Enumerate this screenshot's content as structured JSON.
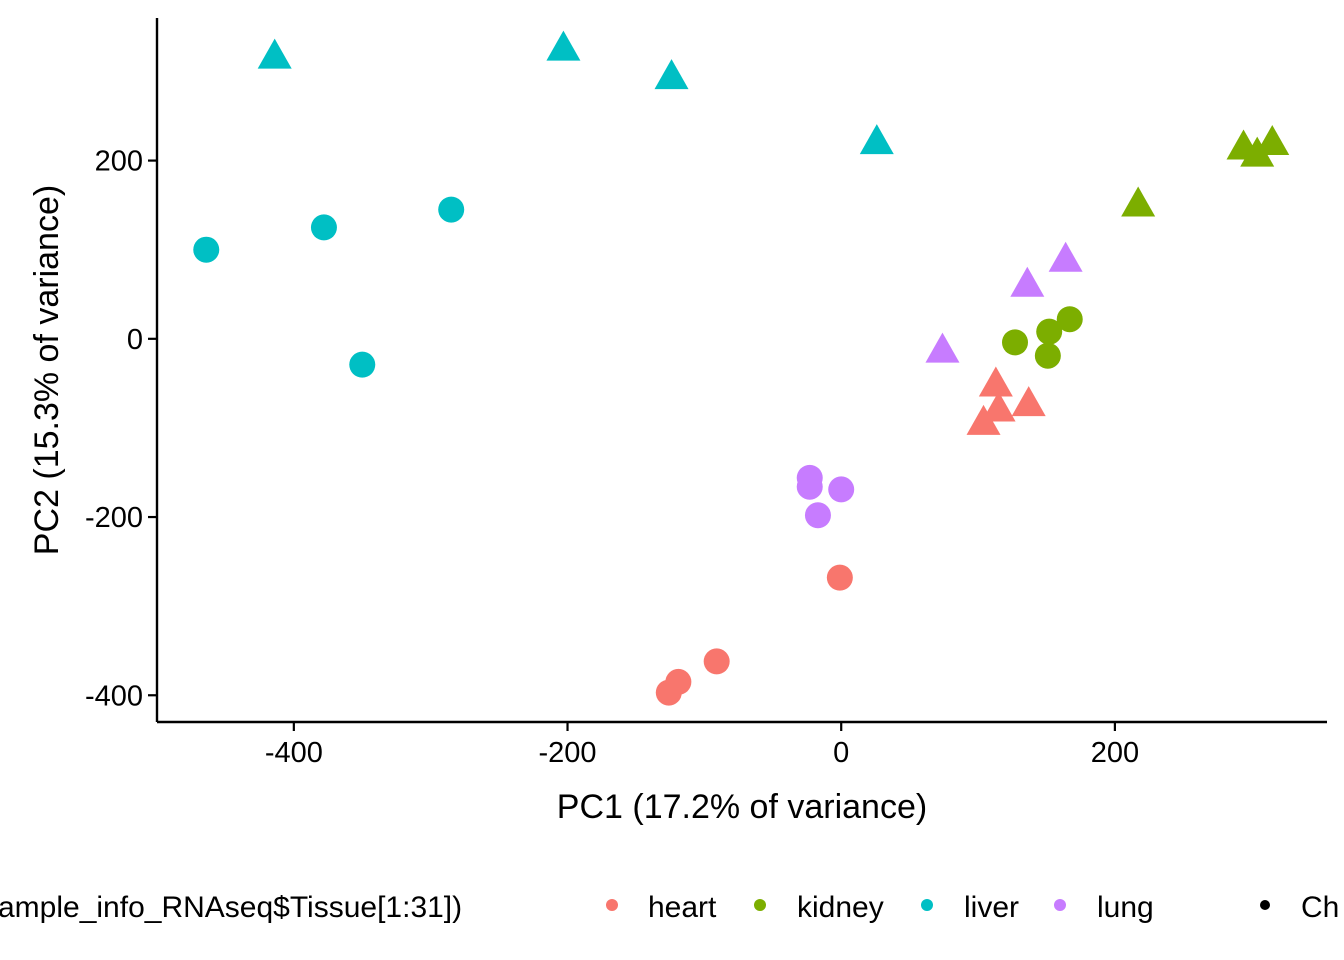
{
  "chart_data": {
    "type": "scatter",
    "title": "",
    "xlabel": "PC1 (17.2% of variance)",
    "ylabel": "PC2 (15.3% of variance)",
    "xlim": [
      -500,
      355
    ],
    "ylim": [
      -430,
      360
    ],
    "xticks": [
      -400,
      -200,
      0,
      200
    ],
    "yticks": [
      -400,
      -200,
      0,
      200
    ],
    "xtick_labels": [
      "-400",
      "-200",
      "0",
      "200"
    ],
    "ytick_labels": [
      "-400",
      "-200",
      "0",
      "200"
    ],
    "grid": false,
    "legend_position": "bottom",
    "legend": {
      "title": "ample_info_RNAseq$Tissue[1:31])",
      "items": [
        {
          "label": "heart",
          "color": "#F8766D"
        },
        {
          "label": "kidney",
          "color": "#7CAE00"
        },
        {
          "label": "liver",
          "color": "#00BFC4"
        },
        {
          "label": "lung",
          "color": "#C77CFF"
        }
      ],
      "second_title": "Ch",
      "second_color": "#000000"
    },
    "shapes": [
      "circle",
      "triangle"
    ],
    "series": [
      {
        "name": "heart",
        "color": "#F8766D",
        "points": [
          {
            "x": -126,
            "y": -397,
            "shape": "circle"
          },
          {
            "x": -119,
            "y": -385,
            "shape": "circle"
          },
          {
            "x": -91,
            "y": -362,
            "shape": "circle"
          },
          {
            "x": -1,
            "y": -268,
            "shape": "circle"
          },
          {
            "x": 104,
            "y": -95,
            "shape": "triangle"
          },
          {
            "x": 115,
            "y": -80,
            "shape": "triangle"
          },
          {
            "x": 137,
            "y": -74,
            "shape": "triangle"
          },
          {
            "x": 113,
            "y": -52,
            "shape": "triangle"
          }
        ]
      },
      {
        "name": "kidney",
        "color": "#7CAE00",
        "points": [
          {
            "x": 127,
            "y": -4,
            "shape": "circle"
          },
          {
            "x": 151,
            "y": -19,
            "shape": "circle"
          },
          {
            "x": 152,
            "y": 8,
            "shape": "circle"
          },
          {
            "x": 167,
            "y": 22,
            "shape": "circle"
          },
          {
            "x": 217,
            "y": 150,
            "shape": "triangle"
          },
          {
            "x": 294,
            "y": 214,
            "shape": "triangle"
          },
          {
            "x": 304,
            "y": 206,
            "shape": "triangle"
          },
          {
            "x": 315,
            "y": 219,
            "shape": "triangle"
          }
        ]
      },
      {
        "name": "liver",
        "color": "#00BFC4",
        "points": [
          {
            "x": -464,
            "y": 100,
            "shape": "circle"
          },
          {
            "x": -378,
            "y": 125,
            "shape": "circle"
          },
          {
            "x": -350,
            "y": -29,
            "shape": "circle"
          },
          {
            "x": -285,
            "y": 145,
            "shape": "circle"
          },
          {
            "x": -414,
            "y": 316,
            "shape": "triangle"
          },
          {
            "x": -203,
            "y": 325,
            "shape": "triangle"
          },
          {
            "x": -124,
            "y": 293,
            "shape": "triangle"
          },
          {
            "x": 26,
            "y": 220,
            "shape": "triangle"
          }
        ]
      },
      {
        "name": "lung",
        "color": "#C77CFF",
        "points": [
          {
            "x": -23,
            "y": -156,
            "shape": "circle"
          },
          {
            "x": -23,
            "y": -166,
            "shape": "circle"
          },
          {
            "x": -17,
            "y": -198,
            "shape": "circle"
          },
          {
            "x": 0,
            "y": -169,
            "shape": "circle"
          },
          {
            "x": 74,
            "y": -14,
            "shape": "triangle"
          },
          {
            "x": 136,
            "y": 60,
            "shape": "triangle"
          },
          {
            "x": 164,
            "y": 88,
            "shape": "triangle"
          }
        ]
      }
    ]
  }
}
